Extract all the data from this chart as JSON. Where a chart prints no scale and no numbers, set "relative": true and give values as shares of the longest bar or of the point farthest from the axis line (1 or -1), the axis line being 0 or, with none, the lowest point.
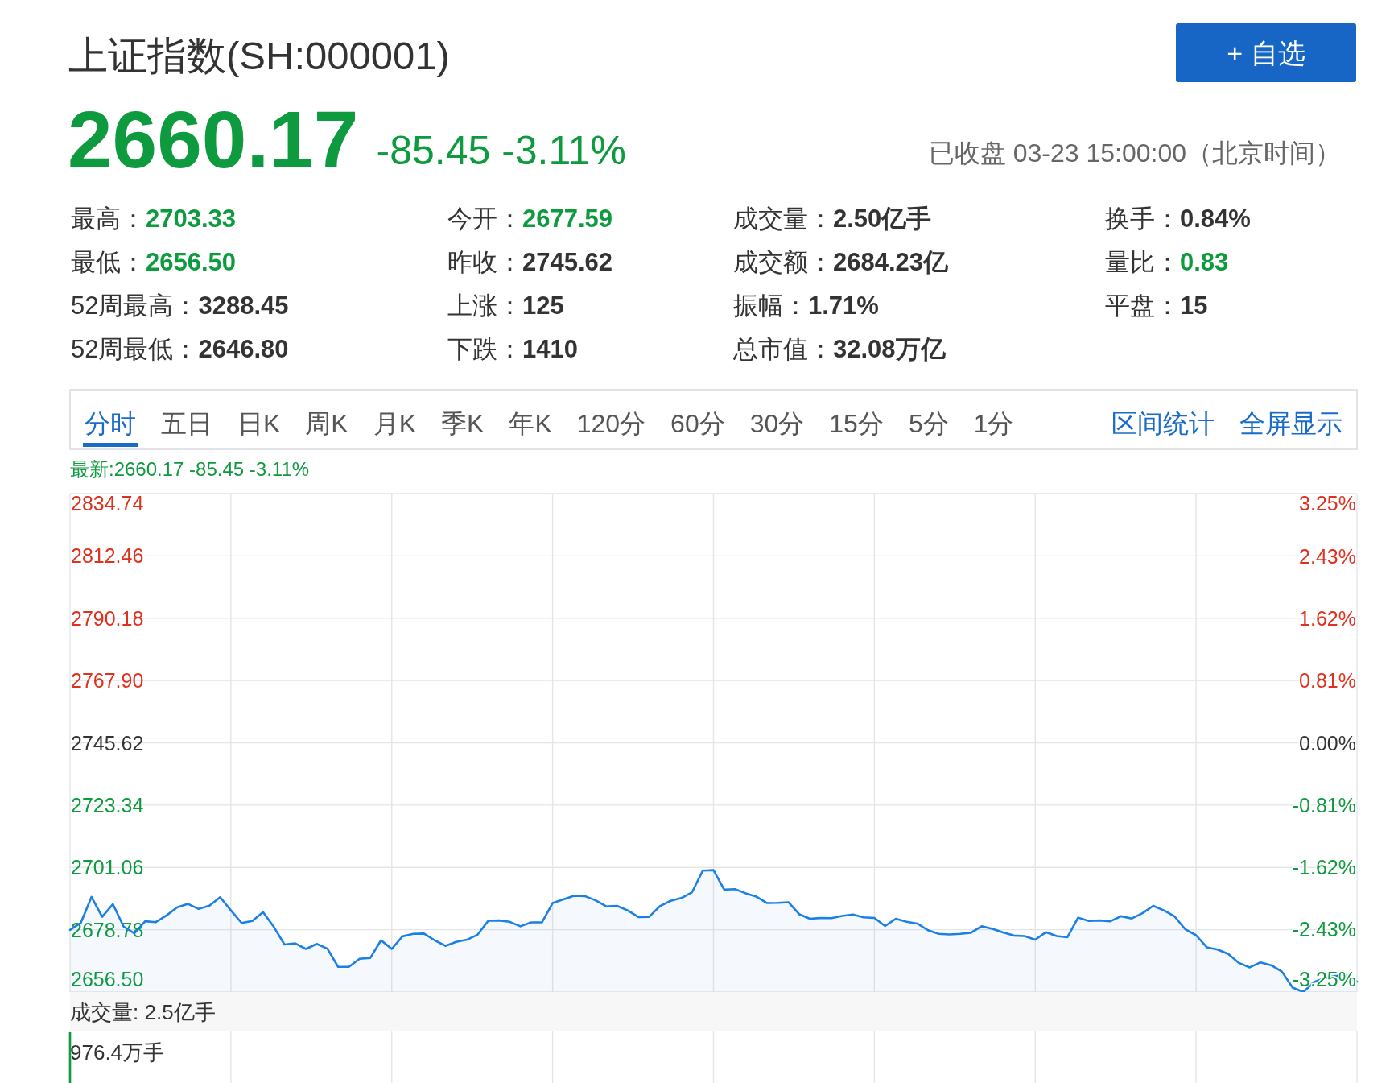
{
  "chart_data": [
    {
      "type": "other",
      "title": "上证指数(SH:000001)",
      "subtitle": "2660.17",
      "color": "#0e9a3e",
      "annotations": [
        "-85.45 -3.11%",
        "已收盘 03-23 15:00:00（北京时间）",
        "+ 自选",
        "："
      ],
      "categories": [
        "最高",
        "今开",
        "成交量",
        "换手",
        "最低",
        "昨收",
        "成交额",
        "量比",
        "52周最高",
        "上涨",
        "振幅",
        "平盘",
        "52周最低",
        "下跌",
        "总市值"
      ],
      "value_labels": [
        "2703.33",
        "2677.59",
        "2.50亿手",
        "0.84%",
        "2656.50",
        "2745.62",
        "2684.23亿",
        "0.83",
        "3288.45",
        "125",
        "1.71%",
        "15",
        "2646.80",
        "1410",
        "32.08万亿"
      ],
      "colors": [
        "#0e9a3e",
        "#0e9a3e",
        "#333333",
        "#333333",
        "#0e9a3e",
        "#333333",
        "#333333",
        "#0e9a3e",
        "#333333",
        "#333333",
        "#333333",
        "#333333",
        "#333333",
        "#333333",
        "#333333"
      ]
    },
    {
      "type": "area",
      "title": "最新:2660.17 -85.45 -3.11%",
      "annotations": [
        "分时",
        "五日",
        "日K",
        "周K",
        "月K",
        "季K",
        "年K",
        "120分",
        "60分",
        "30分",
        "15分",
        "5分",
        "1分",
        "区间统计",
        "全屏显示"
      ],
      "categories": [
        null,
        null,
        null,
        null,
        null,
        null,
        null,
        null,
        null,
        null,
        null,
        null,
        null,
        null,
        null,
        null,
        null,
        null,
        null,
        null,
        null,
        null,
        null,
        null,
        null,
        null,
        null,
        null,
        null,
        null,
        null,
        null,
        null,
        null,
        null,
        null,
        null,
        null,
        null,
        null,
        null,
        null,
        null,
        null,
        null,
        null,
        null,
        null,
        null,
        null,
        null,
        null,
        null,
        null,
        null,
        null,
        null,
        null,
        null,
        null,
        null,
        null,
        null,
        null,
        null,
        null,
        null,
        null,
        null,
        null,
        null,
        null,
        null,
        null,
        null,
        null,
        null,
        null,
        null,
        null,
        null,
        null,
        null,
        null,
        null,
        null,
        null,
        null,
        null,
        null,
        null,
        null,
        null,
        null,
        null,
        null,
        null,
        null,
        null,
        null,
        null,
        null,
        null,
        null,
        null,
        null,
        null,
        null,
        null,
        null,
        null,
        null,
        null,
        null,
        null,
        null,
        null,
        null,
        null,
        null,
        null
      ],
      "values": [
        2678.7,
        2681.2,
        2690.5,
        2683.4,
        2687.9,
        2679.9,
        2677.5,
        2681.8,
        2681.5,
        2683.9,
        2686.8,
        2688.0,
        2686.2,
        2687.4,
        2690.4,
        2685.7,
        2681.2,
        2681.9,
        2685.1,
        2679.8,
        2673.5,
        2673.9,
        2671.9,
        2673.7,
        2672.0,
        2665.5,
        2665.5,
        2668.4,
        2668.7,
        2675.0,
        2671.9,
        2676.4,
        2677.3,
        2677.4,
        2675.0,
        2673.0,
        2674.4,
        2675.2,
        2677.0,
        2682.0,
        2682.1,
        2681.6,
        2680.0,
        2681.4,
        2681.4,
        2688.3,
        2689.6,
        2690.9,
        2690.8,
        2689.3,
        2687.1,
        2687.3,
        2685.7,
        2683.3,
        2683.4,
        2687.2,
        2689.1,
        2690.1,
        2692.2,
        2699.9,
        2700.1,
        2693.1,
        2693.3,
        2691.8,
        2690.6,
        2688.3,
        2688.4,
        2688.6,
        2684.3,
        2682.7,
        2683.0,
        2682.9,
        2683.7,
        2684.2,
        2683.2,
        2683.0,
        2680.1,
        2682.7,
        2681.6,
        2681.0,
        2678.6,
        2677.3,
        2677.1,
        2677.3,
        2677.7,
        2680.0,
        2679.1,
        2677.8,
        2676.7,
        2676.5,
        2675.2,
        2677.9,
        2676.5,
        2676.1,
        2683.1,
        2681.9,
        2682.1,
        2681.8,
        2683.6,
        2682.8,
        2684.7,
        2687.3,
        2685.7,
        2683.5,
        2678.9,
        2676.8,
        2672.5,
        2671.7,
        2670.1,
        2666.9,
        2665.3,
        2667.1,
        2666.1,
        2663.8,
        2658.1,
        2656.5,
        2660.1,
        2661.4,
        2662.3,
        2662.5,
        2660.2
      ],
      "color": "#1b7fe3",
      "ylim": [
        2656.5,
        2834.74
      ],
      "yticks": [
        2834.74,
        2812.46,
        2790.18,
        {
          "value": 2767.9,
          "label": "2767.90"
        },
        2745.62,
        2723.34,
        2701.06,
        2678.78,
        {
          "value": 2656.5,
          "label": "2656.50"
        }
      ],
      "y2lim": [
        -3.25,
        3.25
      ],
      "y2ticks": [
        {
          "value": 3.25,
          "label": "3.25%"
        },
        {
          "value": 2.43,
          "label": "2.43%"
        },
        {
          "value": 1.62,
          "label": "1.62%"
        },
        {
          "value": 0.81,
          "label": "0.81%"
        },
        {
          "value": 0,
          "label": "0.00%"
        },
        {
          "value": -0.81,
          "label": "-0.81%"
        },
        {
          "value": -1.62,
          "label": "-1.62%"
        },
        {
          "value": -2.43,
          "label": "-2.43%"
        },
        {
          "value": -3.25,
          "label": "-3.25%"
        }
      ],
      "grid": true
    },
    {
      "type": "bar",
      "relative": true,
      "title": "成交量: 2.5亿手",
      "annotations": [
        "976.4万手"
      ],
      "color": "#0e9a3e",
      "grid": "x",
      "categories": [
        null,
        null,
        null,
        null,
        null,
        null,
        null,
        null,
        null,
        null,
        null,
        null,
        null,
        null,
        null,
        null,
        null,
        null,
        null,
        null,
        null,
        null,
        null,
        null,
        null,
        null,
        null,
        null,
        null,
        null,
        null,
        null,
        null,
        null,
        null,
        null,
        null,
        null,
        null,
        null,
        null,
        null,
        null,
        null,
        null,
        null,
        null,
        null,
        null,
        null,
        null,
        null,
        null,
        null,
        null,
        null,
        null,
        null,
        null,
        null,
        null,
        null,
        null,
        null,
        null,
        null,
        null,
        null,
        null,
        null,
        null,
        null,
        null,
        null,
        null,
        null,
        null,
        null,
        null,
        null,
        null,
        null,
        null,
        null,
        null,
        null,
        null,
        null,
        null,
        null,
        null,
        null,
        null,
        null,
        null,
        null,
        null,
        null,
        null,
        null,
        null,
        null,
        null,
        null,
        null,
        null,
        null,
        null,
        null,
        null,
        null,
        null,
        null,
        null,
        null,
        null,
        null,
        null,
        null,
        null,
        null
      ],
      "values": [
        1,
        null,
        null,
        null,
        null,
        null,
        null,
        null,
        null,
        null,
        null,
        null,
        null,
        null,
        null,
        null,
        null,
        null,
        null,
        null,
        null,
        null,
        null,
        null,
        null,
        null,
        null,
        null,
        null,
        null,
        null,
        null,
        null,
        null,
        null,
        null,
        null,
        null,
        null,
        null,
        null,
        null,
        null,
        null,
        null,
        null,
        null,
        null,
        null,
        null,
        null,
        null,
        null,
        null,
        null,
        null,
        null,
        null,
        null,
        null,
        null,
        null,
        null,
        null,
        null,
        null,
        null,
        null,
        null,
        null,
        null,
        null,
        null,
        null,
        null,
        null,
        null,
        null,
        null,
        null,
        null,
        null,
        null,
        null,
        null,
        null,
        null,
        null,
        null,
        null,
        null,
        null,
        null,
        null,
        null,
        null,
        null,
        null,
        null,
        null,
        null,
        null,
        null,
        null,
        null,
        null,
        null,
        null,
        null,
        null,
        null,
        null,
        null,
        null,
        null,
        null,
        null,
        null,
        null,
        null,
        null
      ]
    }
  ]
}
